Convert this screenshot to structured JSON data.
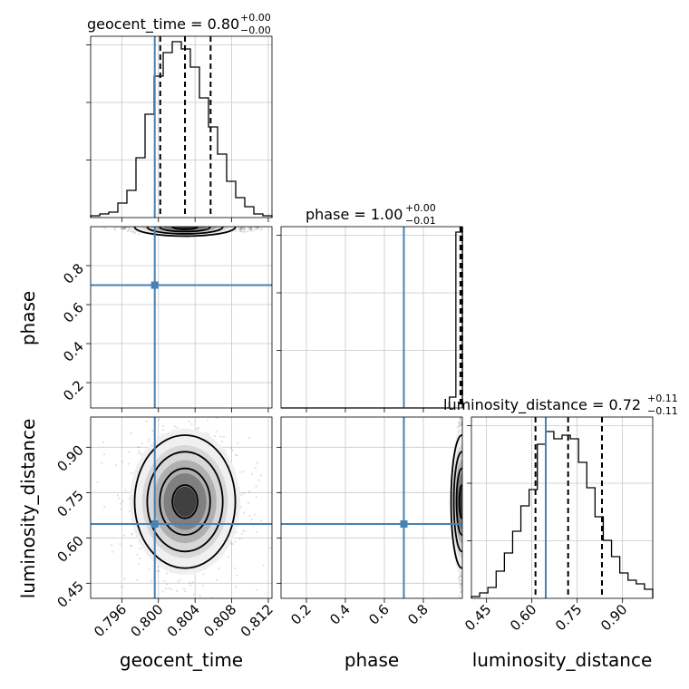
{
  "chart_data": {
    "type": "corner",
    "parameters": [
      {
        "name": "geocent_time",
        "axis_label": "geocent_time",
        "range": [
          0.7926,
          0.8124
        ],
        "ticks": [
          0.796,
          0.8,
          0.804,
          0.808,
          0.812
        ],
        "tick_labels": [
          "0.796",
          "0.800",
          "0.804",
          "0.808",
          "0.812"
        ],
        "truth": 0.7996,
        "median": 0.8029,
        "q_low": 0.8002,
        "q_high": 0.8057,
        "title": {
          "base": "geocent_time = 0.80",
          "plus": "+0.00",
          "minus": "−0.00"
        }
      },
      {
        "name": "phase",
        "axis_label": "phase",
        "range": [
          0.07,
          1.0
        ],
        "ticks": [
          0.2,
          0.4,
          0.6,
          0.8
        ],
        "tick_labels": [
          "0.2",
          "0.4",
          "0.6",
          "0.8"
        ],
        "truth": 0.7,
        "median": 0.997,
        "q_low": 0.99,
        "q_high": 0.999,
        "title": {
          "base": "phase = 1.00",
          "plus": "+0.00",
          "minus": "−0.01"
        }
      },
      {
        "name": "luminosity_distance",
        "axis_label": "luminosity_distance",
        "range": [
          0.4,
          1.0
        ],
        "ticks": [
          0.45,
          0.6,
          0.75,
          0.9
        ],
        "tick_labels": [
          "0.45",
          "0.60",
          "0.75",
          "0.90"
        ],
        "truth": 0.646,
        "median": 0.72,
        "q_low": 0.612,
        "q_high": 0.832,
        "title": {
          "base": "luminosity_distance = 0.72",
          "plus": "+0.11",
          "minus": "−0.11"
        }
      }
    ],
    "histograms": {
      "geocent_time": [
        0.01,
        0.02,
        0.03,
        0.08,
        0.15,
        0.33,
        0.57,
        0.78,
        0.91,
        0.97,
        0.93,
        0.83,
        0.66,
        0.5,
        0.35,
        0.2,
        0.11,
        0.06,
        0.02,
        0.01
      ],
      "phase": [
        0,
        0,
        0,
        0,
        0,
        0,
        0,
        0,
        0,
        0,
        0,
        0,
        0,
        0,
        0,
        0,
        0,
        0,
        0,
        0,
        0,
        0,
        0,
        0,
        0,
        0,
        0.06,
        0.97
      ],
      "luminosity_distance": [
        0.01,
        0.03,
        0.06,
        0.15,
        0.25,
        0.37,
        0.51,
        0.6,
        0.85,
        0.92,
        0.88,
        0.9,
        0.88,
        0.75,
        0.61,
        0.45,
        0.32,
        0.23,
        0.14,
        0.1,
        0.08,
        0.05
      ]
    },
    "truth_color": "#4682b4",
    "hist_color": "#000000",
    "grid": true
  }
}
